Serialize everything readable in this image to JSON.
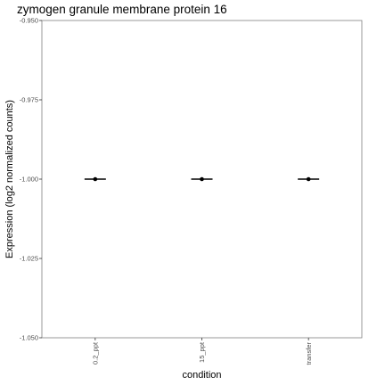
{
  "chart_data": {
    "type": "scatter",
    "title": "zymogen granule membrane protein 16",
    "xlabel": "condition",
    "ylabel": "Expression (log2 normalized counts)",
    "categories": [
      "0.2_ppt",
      "15_ppt",
      "transfer"
    ],
    "values": [
      -1.0,
      -1.0,
      -1.0
    ],
    "ylim": [
      -1.05,
      -0.95
    ],
    "yticks": [
      "-0.950",
      "-0.975",
      "-1.000",
      "-1.025",
      "-1.050"
    ],
    "ytick_values": [
      -0.95,
      -0.975,
      -1.0,
      -1.025,
      -1.05
    ],
    "summary_marker": "horizontal-bar",
    "grid": false,
    "legend": "none",
    "colors": {
      "points": "#000000",
      "panel_border": "#7f7f7f",
      "background": "#ffffff"
    }
  }
}
